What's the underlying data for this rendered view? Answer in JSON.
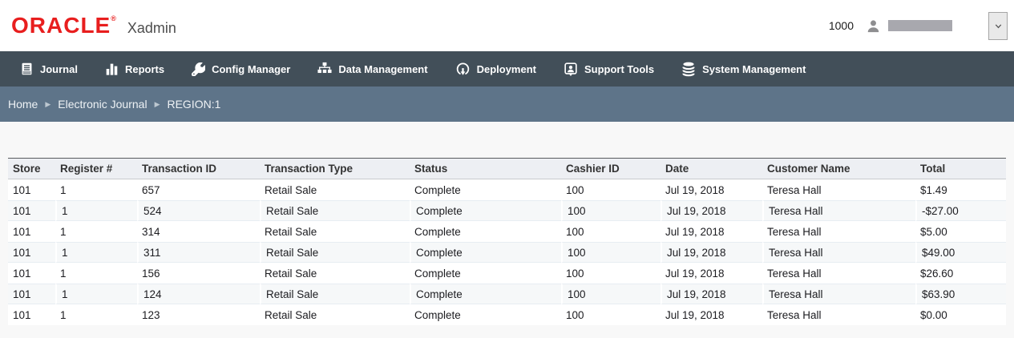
{
  "header": {
    "logo_text": "ORACLE",
    "registered_mark": "®",
    "app_name": "Xadmin",
    "user_id": "1000"
  },
  "nav": {
    "items": [
      {
        "label": "Journal",
        "icon": "journal-icon"
      },
      {
        "label": "Reports",
        "icon": "bar-chart-icon"
      },
      {
        "label": "Config Manager",
        "icon": "wrench-icon"
      },
      {
        "label": "Data Management",
        "icon": "sitemap-icon"
      },
      {
        "label": "Deployment",
        "icon": "cloud-download-icon"
      },
      {
        "label": "Support Tools",
        "icon": "support-person-icon"
      },
      {
        "label": "System Management",
        "icon": "database-icon"
      }
    ]
  },
  "breadcrumb": {
    "items": [
      "Home",
      "Electronic Journal",
      "REGION:1"
    ],
    "separator": "▶"
  },
  "table": {
    "columns": [
      "Store",
      "Register #",
      "Transaction ID",
      "Transaction Type",
      "Status",
      "Cashier ID",
      "Date",
      "Customer Name",
      "Total"
    ],
    "rows": [
      [
        "101",
        "1",
        "657",
        "Retail Sale",
        "Complete",
        "100",
        "Jul 19, 2018",
        "Teresa Hall",
        "$1.49"
      ],
      [
        "101",
        "1",
        "524",
        "Retail Sale",
        "Complete",
        "100",
        "Jul 19, 2018",
        "Teresa Hall",
        "-$27.00"
      ],
      [
        "101",
        "1",
        "314",
        "Retail Sale",
        "Complete",
        "100",
        "Jul 19, 2018",
        "Teresa Hall",
        "$5.00"
      ],
      [
        "101",
        "1",
        "311",
        "Retail Sale",
        "Complete",
        "100",
        "Jul 19, 2018",
        "Teresa Hall",
        "$49.00"
      ],
      [
        "101",
        "1",
        "156",
        "Retail Sale",
        "Complete",
        "100",
        "Jul 19, 2018",
        "Teresa Hall",
        "$26.60"
      ],
      [
        "101",
        "1",
        "124",
        "Retail Sale",
        "Complete",
        "100",
        "Jul 19, 2018",
        "Teresa Hall",
        "$63.90"
      ],
      [
        "101",
        "1",
        "123",
        "Retail Sale",
        "Complete",
        "100",
        "Jul 19, 2018",
        "Teresa Hall",
        "$0.00"
      ]
    ]
  },
  "colors": {
    "oracle_red": "#e81e1e",
    "nav_bg": "#424f59",
    "breadcrumb_bg": "#5e7489",
    "table_header_bg": "#edeff3",
    "stripe_bg": "#f6f8f9",
    "redacted_gray": "#a8a8ae",
    "page_bg": "#f8f8f8"
  }
}
